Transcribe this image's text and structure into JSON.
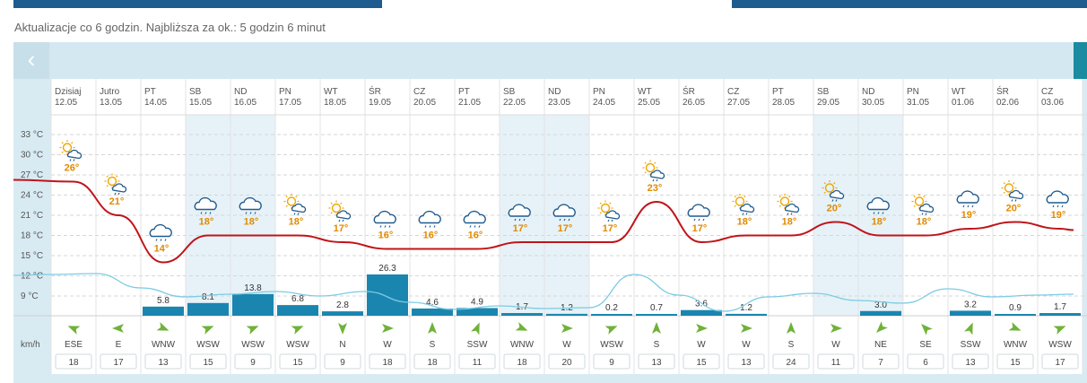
{
  "header": {
    "update_info": "Aktualizacje co 6 godzin. Najbliższa za ok.: 5 godzin 6 minut"
  },
  "nav": {
    "prev_icon": "chevron-left-icon",
    "next_icon": "chevron-right-icon"
  },
  "colors": {
    "temp_line": "#c0141a",
    "precip_bar": "#1a86b0",
    "precip_line": "#7ccbe3",
    "weekend_band": "#e6f2f8",
    "wind_arrow": "#6fb23a",
    "temp_label": "#e08a00"
  },
  "wind_unit": "km/h",
  "chart_data": {
    "type": "line",
    "temp_axis": {
      "ticks": [
        "33 °C",
        "30 °C",
        "27 °C",
        "24 °C",
        "21 °C",
        "18 °C",
        "15 °C",
        "12 °C",
        "9 °C"
      ],
      "values": [
        33,
        30,
        27,
        24,
        21,
        18,
        15,
        12,
        9
      ]
    },
    "days": [
      {
        "name": "Dzisiaj",
        "date": "12.05",
        "temp": 26,
        "temp_label": "26°",
        "icon": "sun-cloud-rain-icon",
        "precip": null,
        "precip_label": "",
        "wind_dir": "ESE",
        "wind_speed": "18",
        "weekend": false
      },
      {
        "name": "Jutro",
        "date": "13.05",
        "temp": 21,
        "temp_label": "21°",
        "icon": "sun-cloud-rain-icon",
        "precip": null,
        "precip_label": "",
        "wind_dir": "E",
        "wind_speed": "17",
        "weekend": false
      },
      {
        "name": "PT",
        "date": "14.05",
        "temp": 14,
        "temp_label": "14°",
        "icon": "cloud-rain-icon",
        "precip": 5.8,
        "precip_label": "5.8",
        "wind_dir": "WNW",
        "wind_speed": "13",
        "weekend": false
      },
      {
        "name": "SB",
        "date": "15.05",
        "temp": 18,
        "temp_label": "18°",
        "icon": "cloud-rain-icon",
        "precip": 8.1,
        "precip_label": "8.1",
        "wind_dir": "WSW",
        "wind_speed": "15",
        "weekend": true
      },
      {
        "name": "ND",
        "date": "16.05",
        "temp": 18,
        "temp_label": "18°",
        "icon": "cloud-rain-icon",
        "precip": 13.8,
        "precip_label": "13.8",
        "wind_dir": "WSW",
        "wind_speed": "9",
        "weekend": true
      },
      {
        "name": "PN",
        "date": "17.05",
        "temp": 18,
        "temp_label": "18°",
        "icon": "sun-cloud-rain-icon",
        "precip": 6.8,
        "precip_label": "6.8",
        "wind_dir": "WSW",
        "wind_speed": "15",
        "weekend": false
      },
      {
        "name": "WT",
        "date": "18.05",
        "temp": 17,
        "temp_label": "17°",
        "icon": "sun-cloud-rain-icon",
        "precip": 2.8,
        "precip_label": "2.8",
        "wind_dir": "N",
        "wind_speed": "9",
        "weekend": false
      },
      {
        "name": "ŚR",
        "date": "19.05",
        "temp": 16,
        "temp_label": "16°",
        "icon": "cloud-rain-icon",
        "precip": 26.3,
        "precip_label": "26.3",
        "wind_dir": "W",
        "wind_speed": "18",
        "weekend": false
      },
      {
        "name": "CZ",
        "date": "20.05",
        "temp": 16,
        "temp_label": "16°",
        "icon": "cloud-rain-icon",
        "precip": 4.6,
        "precip_label": "4.6",
        "wind_dir": "S",
        "wind_speed": "18",
        "weekend": false
      },
      {
        "name": "PT",
        "date": "21.05",
        "temp": 16,
        "temp_label": "16°",
        "icon": "cloud-rain-icon",
        "precip": 4.9,
        "precip_label": "4.9",
        "wind_dir": "SSW",
        "wind_speed": "11",
        "weekend": false
      },
      {
        "name": "SB",
        "date": "22.05",
        "temp": 17,
        "temp_label": "17°",
        "icon": "cloud-rain-icon",
        "precip": 1.7,
        "precip_label": "1.7",
        "wind_dir": "WNW",
        "wind_speed": "18",
        "weekend": true
      },
      {
        "name": "ND",
        "date": "23.05",
        "temp": 17,
        "temp_label": "17°",
        "icon": "cloud-rain-icon",
        "precip": 1.2,
        "precip_label": "1.2",
        "wind_dir": "W",
        "wind_speed": "20",
        "weekend": true
      },
      {
        "name": "PN",
        "date": "24.05",
        "temp": 17,
        "temp_label": "17°",
        "icon": "sun-cloud-rain-icon",
        "precip": 0.2,
        "precip_label": "0.2",
        "wind_dir": "WSW",
        "wind_speed": "9",
        "weekend": false
      },
      {
        "name": "WT",
        "date": "25.05",
        "temp": 23,
        "temp_label": "23°",
        "icon": "sun-cloud-rain-icon",
        "precip": 0.7,
        "precip_label": "0.7",
        "wind_dir": "S",
        "wind_speed": "13",
        "weekend": false
      },
      {
        "name": "ŚR",
        "date": "26.05",
        "temp": 17,
        "temp_label": "17°",
        "icon": "cloud-rain-icon",
        "precip": 3.6,
        "precip_label": "3.6",
        "wind_dir": "W",
        "wind_speed": "15",
        "weekend": false
      },
      {
        "name": "CZ",
        "date": "27.05",
        "temp": 18,
        "temp_label": "18°",
        "icon": "sun-cloud-rain-icon",
        "precip": 1.2,
        "precip_label": "1.2",
        "wind_dir": "W",
        "wind_speed": "13",
        "weekend": false
      },
      {
        "name": "PT",
        "date": "28.05",
        "temp": 18,
        "temp_label": "18°",
        "icon": "sun-cloud-rain-icon",
        "precip": null,
        "precip_label": "",
        "wind_dir": "S",
        "wind_speed": "24",
        "weekend": false
      },
      {
        "name": "SB",
        "date": "29.05",
        "temp": 20,
        "temp_label": "20°",
        "icon": "sun-cloud-rain-icon",
        "precip": null,
        "precip_label": "",
        "wind_dir": "W",
        "wind_speed": "11",
        "weekend": true
      },
      {
        "name": "ND",
        "date": "30.05",
        "temp": 18,
        "temp_label": "18°",
        "icon": "cloud-rain-icon",
        "precip": 3.0,
        "precip_label": "3.0",
        "wind_dir": "NE",
        "wind_speed": "7",
        "weekend": true
      },
      {
        "name": "PN",
        "date": "31.05",
        "temp": 18,
        "temp_label": "18°",
        "icon": "sun-cloud-rain-icon",
        "precip": null,
        "precip_label": "",
        "wind_dir": "SE",
        "wind_speed": "6",
        "weekend": false
      },
      {
        "name": "WT",
        "date": "01.06",
        "temp": 19,
        "temp_label": "19°",
        "icon": "cloud-rain-icon",
        "precip": 3.2,
        "precip_label": "3.2",
        "wind_dir": "SSW",
        "wind_speed": "13",
        "weekend": false
      },
      {
        "name": "ŚR",
        "date": "02.06",
        "temp": 20,
        "temp_label": "20°",
        "icon": "sun-cloud-rain-icon",
        "precip": 0.9,
        "precip_label": "0.9",
        "wind_dir": "WNW",
        "wind_speed": "15",
        "weekend": false
      },
      {
        "name": "CZ",
        "date": "03.06",
        "temp": 19,
        "temp_label": "19°",
        "icon": "cloud-rain-icon",
        "precip": 1.7,
        "precip_label": "1.7",
        "wind_dir": "WSW",
        "wind_speed": "17",
        "weekend": false
      }
    ]
  }
}
